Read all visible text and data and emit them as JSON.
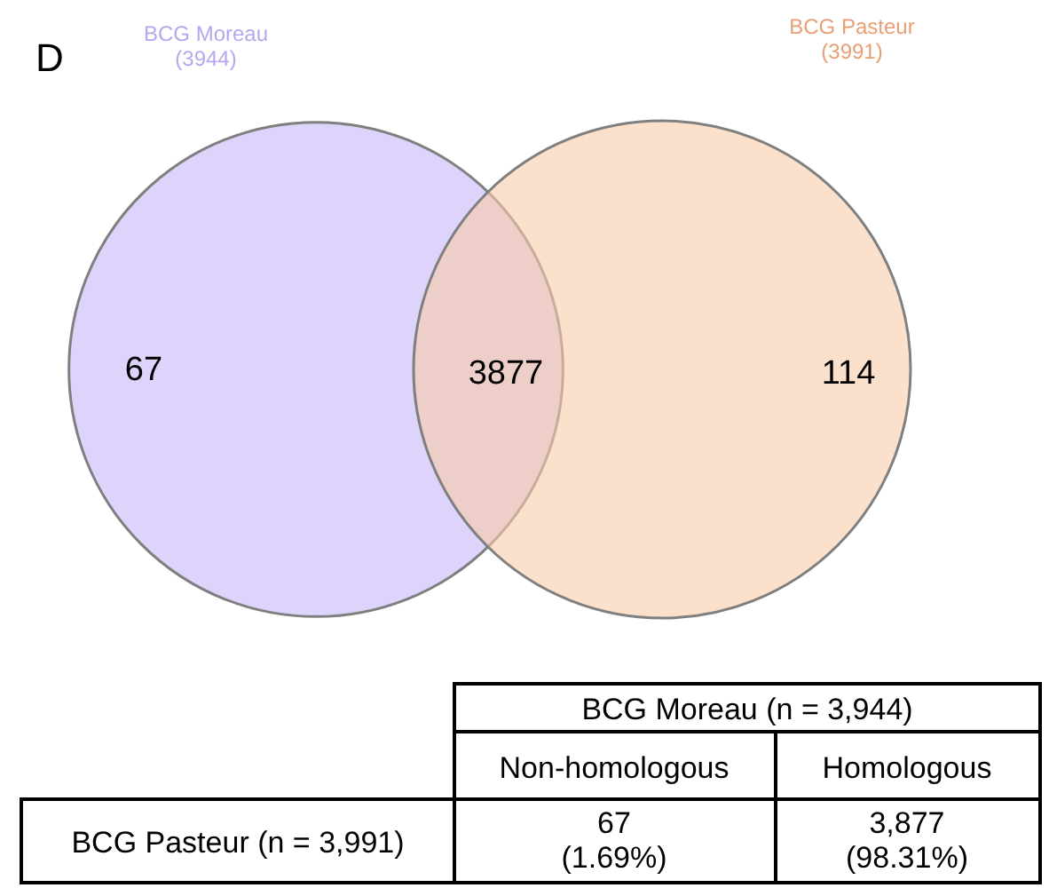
{
  "chart_data": {
    "type": "other",
    "title": "D",
    "categories": [
      "BCG Moreau",
      "BCG Pasteur"
    ],
    "values": [
      3944,
      3991
    ],
    "value_labels": [
      "(3944)",
      "(3991)"
    ],
    "colors": [
      "#ddd3fb",
      "#f9cca9"
    ],
    "annotations": [
      "67",
      "3877",
      "114",
      "BCG Moreau (n = 3,944)",
      "Non-homologous",
      "Homologous",
      "BCG Pasteur (n = 3,991)",
      "67\n(1.69%)",
      "3,877\n(98.31%)"
    ]
  }
}
